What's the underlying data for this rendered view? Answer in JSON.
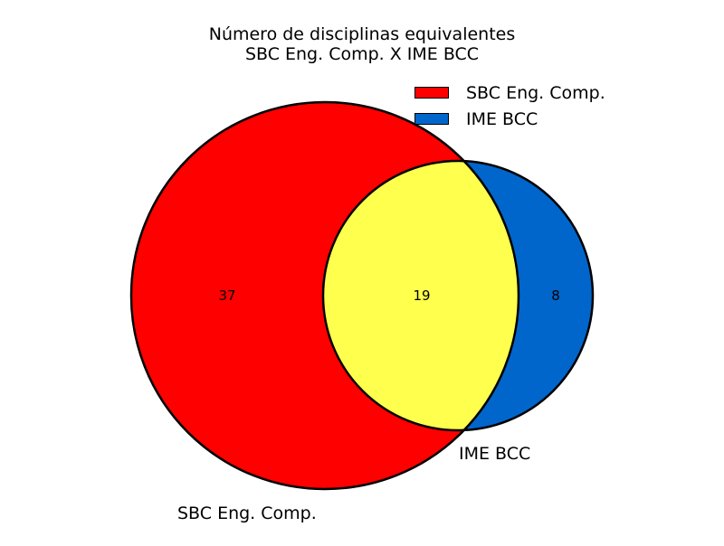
{
  "title_line1": "Número de disciplinas equivalentes",
  "title_line2": "SBC Eng. Comp. X IME BCC",
  "sets": [
    {
      "name": "SBC Eng. Comp.",
      "color": "#ff0000"
    },
    {
      "name": "IME BCC",
      "color": "#0066cc"
    }
  ],
  "intersection_color": "#ffff4d",
  "counts": {
    "only_a": "37",
    "both": "19",
    "only_b": "8"
  }
}
